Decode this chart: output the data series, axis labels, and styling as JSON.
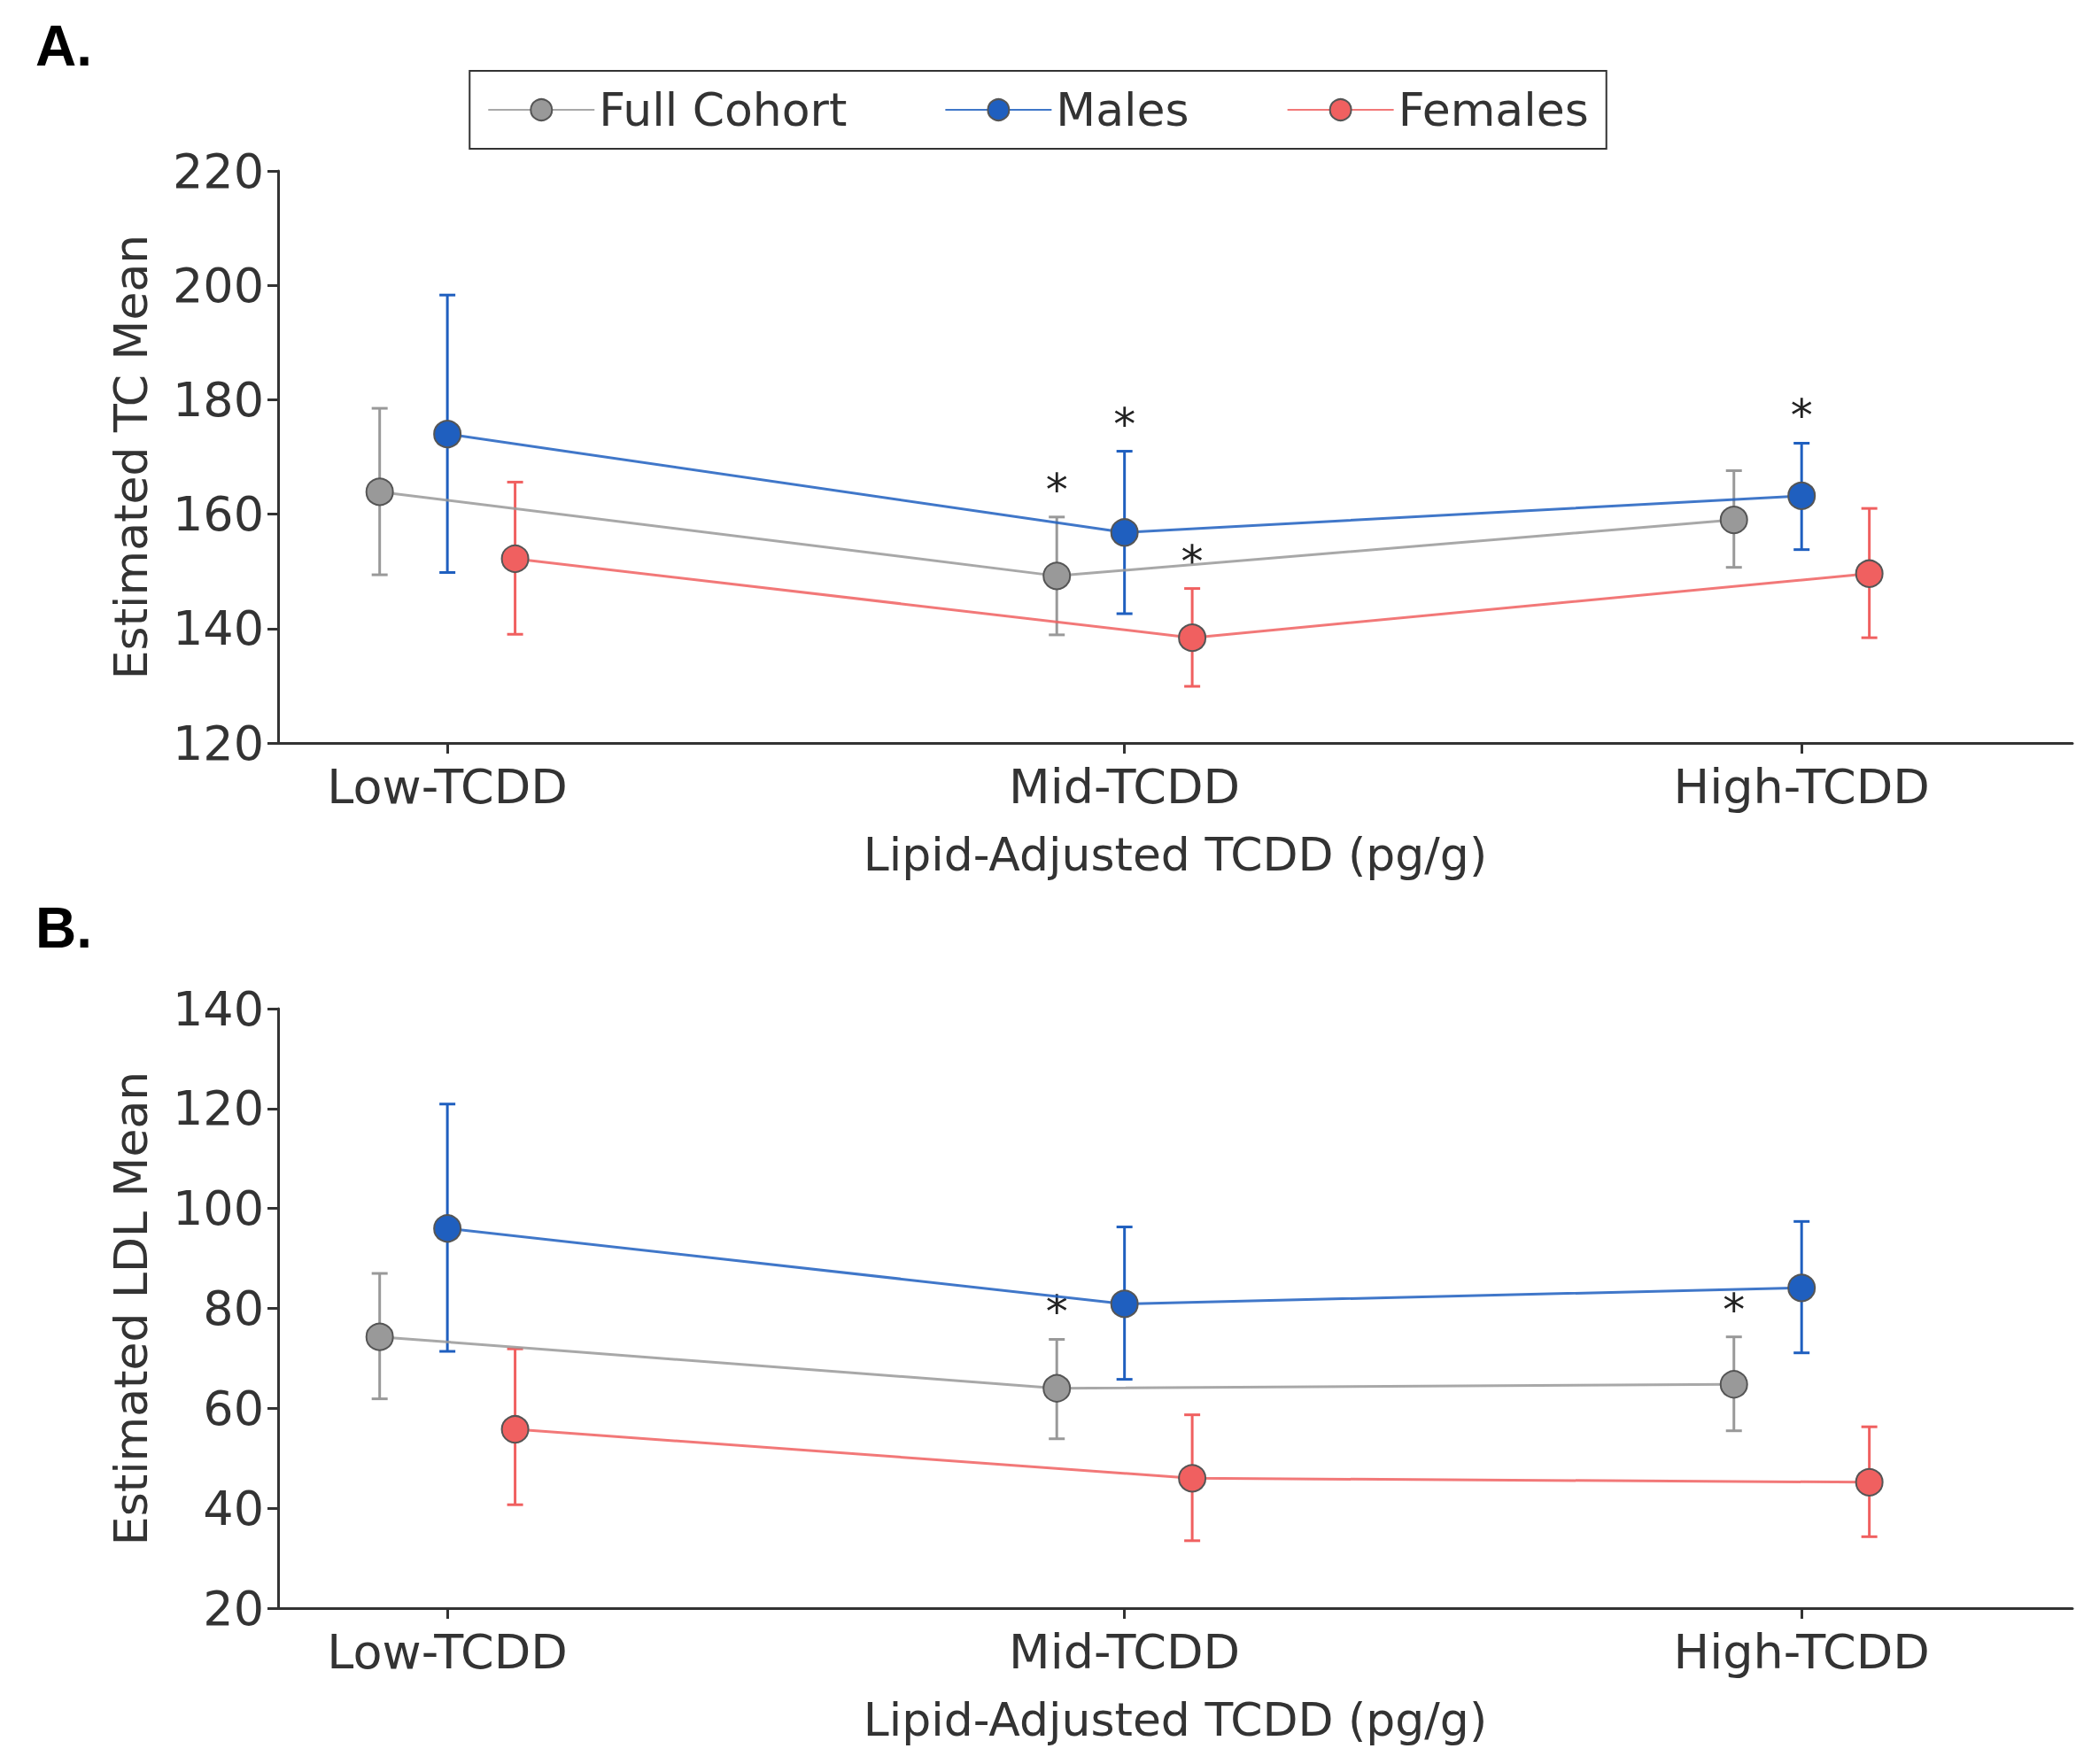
{
  "chart_data": [
    {
      "type": "line",
      "xlabel": "Lipid-Adjusted TCDD (pg/g)",
      "ylabel": "Estimated TC Mean",
      "annotations": [
        "A."
      ],
      "categories": [
        "Low-TCDD",
        "Mid-TCDD",
        "High-TCDD"
      ],
      "series": [
        {
          "name": "Full Cohort",
          "color": "#999999",
          "values": [
            163.9,
            149.2,
            159
          ],
          "errors": [
            [
              149.4,
              178.5
            ],
            [
              138.9,
              159.5
            ],
            [
              150.7,
              167.6
            ]
          ],
          "value_labels": [
            null,
            "*",
            null
          ]
        },
        {
          "name": "Males",
          "color": "#1f5fbf",
          "values": [
            174,
            156.8,
            163.2
          ],
          "errors": [
            [
              149.8,
              198.3
            ],
            [
              142.6,
              171
            ],
            [
              153.8,
              172.4
            ]
          ],
          "value_labels": [
            null,
            "*",
            "*"
          ]
        },
        {
          "name": "Females",
          "color": "#f06060",
          "values": [
            152.2,
            138.4,
            149.6
          ],
          "errors": [
            [
              139,
              165.6
            ],
            [
              129.9,
              147
            ],
            [
              138.4,
              161
            ]
          ],
          "value_labels": [
            null,
            "*",
            null
          ]
        }
      ],
      "ylim": [
        120,
        220
      ],
      "yticks": [
        120,
        140,
        160,
        180,
        200,
        220
      ],
      "legend": "top",
      "marker": "circle",
      "grid": false
    },
    {
      "type": "line",
      "xlabel": "Lipid-Adjusted TCDD (pg/g)",
      "ylabel": "Estimated LDL Mean",
      "annotations": [
        "B."
      ],
      "categories": [
        "Low-TCDD",
        "Mid-TCDD",
        "High-TCDD"
      ],
      "series": [
        {
          "color": "#999999",
          "values": [
            74.3,
            64,
            64.8
          ],
          "errors": [
            [
              61.9,
              87
            ],
            [
              53.9,
              73.8
            ],
            [
              55.5,
              74.3
            ]
          ],
          "value_labels": [
            null,
            "*",
            "*"
          ]
        },
        {
          "color": "#1f5fbf",
          "values": [
            96,
            80.9,
            84.1
          ],
          "errors": [
            [
              71.4,
              120.9
            ],
            [
              65.8,
              96.3
            ],
            [
              71.1,
              97.4
            ]
          ]
        },
        {
          "color": "#f06060",
          "values": [
            55.8,
            46,
            45.2
          ],
          "errors": [
            [
              40.7,
              71.9
            ],
            [
              33.5,
              58.7
            ],
            [
              34.3,
              56.3
            ]
          ]
        }
      ],
      "ylim": [
        20,
        140
      ],
      "yticks": [
        20,
        40,
        60,
        80,
        100,
        120,
        140
      ],
      "legend": false,
      "marker": "circle",
      "grid": false
    }
  ]
}
